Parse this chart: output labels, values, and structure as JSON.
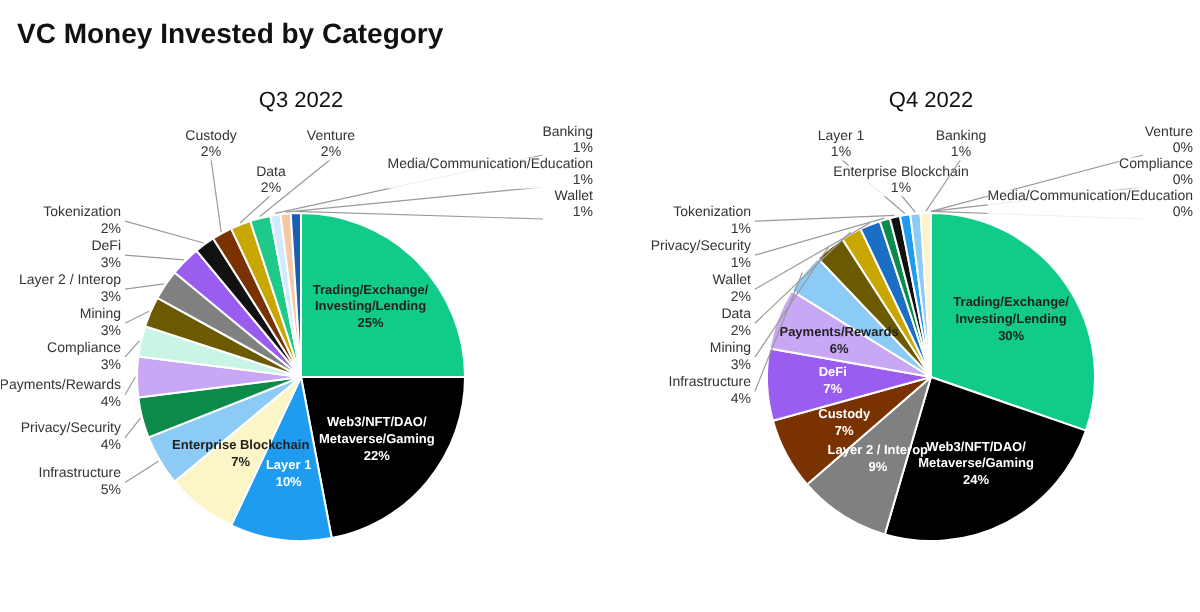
{
  "chart_data": [
    {
      "type": "pie",
      "title": "VC Money Invested by Category",
      "subtitle": "Q3 2022",
      "categories": [
        "Trading/Exchange/Investing/Lending",
        "Web3/NFT/DAO/Metaverse/Gaming",
        "Layer 1",
        "Enterprise Blockchain",
        "Infrastructure",
        "Privacy/Security",
        "Payments/Rewards",
        "Compliance",
        "Mining",
        "Layer 2 / Interop",
        "DeFi",
        "Tokenization",
        "Custody",
        "Data",
        "Venture",
        "Banking",
        "Media/Communication/Education",
        "Wallet"
      ],
      "values": [
        25,
        22,
        10,
        7,
        5,
        4,
        4,
        3,
        3,
        3,
        3,
        2,
        2,
        2,
        2,
        1,
        1,
        1
      ],
      "value_labels": [
        "25%",
        "22%",
        "10%",
        "7%",
        "5%",
        "4%",
        "4%",
        "3%",
        "3%",
        "3%",
        "3%",
        "2%",
        "2%",
        "2%",
        "2%",
        "1%",
        "1%",
        "1%"
      ],
      "colors": [
        "#10cc88",
        "#000000",
        "#1f9bf0",
        "#fcf5c8",
        "#8ccbf5",
        "#0b8a4a",
        "#c8a8f5",
        "#c8f5e6",
        "#6b5a00",
        "#808080",
        "#9b5cf0",
        "#111111",
        "#7a3300",
        "#c8a800",
        "#1fc98a",
        "#d0eaff",
        "#f5c8a8",
        "#1a5fb4"
      ]
    },
    {
      "type": "pie",
      "subtitle": "Q4 2022",
      "categories": [
        "Trading/Exchange/Investing/Lending",
        "Web3/NFT/DAO/Metaverse/Gaming",
        "Layer 2 / Interop",
        "Custody",
        "DeFi",
        "Payments/Rewards",
        "Infrastructure",
        "Mining",
        "Data",
        "Wallet",
        "Privacy/Security",
        "Tokenization",
        "Layer 1",
        "Enterprise Blockchain",
        "Banking",
        "Venture",
        "Compliance",
        "Media/Communication/Education"
      ],
      "values": [
        30,
        24,
        9,
        7,
        7,
        6,
        4,
        3,
        2,
        2,
        1,
        1,
        1,
        1,
        1,
        0,
        0,
        0
      ],
      "value_labels": [
        "30%",
        "24%",
        "9%",
        "7%",
        "7%",
        "6%",
        "4%",
        "3%",
        "2%",
        "2%",
        "1%",
        "1%",
        "1%",
        "1%",
        "1%",
        "0%",
        "0%",
        "0%"
      ],
      "colors": [
        "#10cc88",
        "#000000",
        "#808080",
        "#7a3300",
        "#9b5cf0",
        "#c8a8f5",
        "#8ccbf5",
        "#6b5a00",
        "#c8a800",
        "#1a6fc4",
        "#0b8a4a",
        "#111111",
        "#1f9bf0",
        "#8ccbf5",
        "#fcf5c8",
        "#d0eaff",
        "#c8f5e6",
        "#10cc88"
      ]
    }
  ]
}
